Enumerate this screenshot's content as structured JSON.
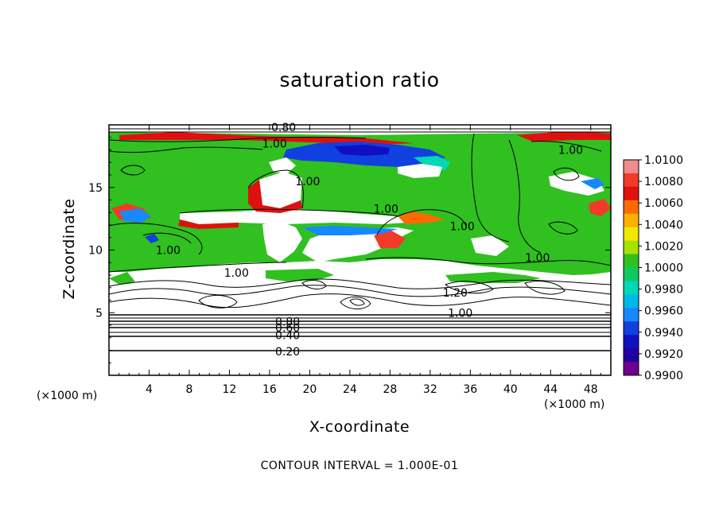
{
  "chart_data": {
    "type": "heatmap",
    "title": "saturation ratio",
    "xlabel": "X-coordinate",
    "ylabel": "Z-coordinate",
    "x_unit": "(×1000 m)",
    "xlim": [
      0,
      50
    ],
    "ylim": [
      0,
      20
    ],
    "x_ticks": [
      4,
      8,
      12,
      16,
      20,
      24,
      28,
      32,
      36,
      40,
      44,
      48
    ],
    "y_ticks": [
      5,
      10,
      15
    ],
    "colorbar": {
      "labels": [
        "1.0100",
        "1.0080",
        "1.0060",
        "1.0040",
        "1.0020",
        "1.0000",
        "0.9980",
        "0.9960",
        "0.9940",
        "0.9920",
        "0.9900"
      ],
      "colors": [
        "#f08c8c",
        "#f23a28",
        "#e01010",
        "#ff6a00",
        "#ffb000",
        "#f0e800",
        "#a8e000",
        "#30c020",
        "#10c860",
        "#00d8b8",
        "#00b8e8",
        "#1888ff",
        "#1040e0",
        "#1010c0",
        "#2000a0",
        "#700090"
      ]
    },
    "contour_labels": [
      {
        "text": "0.20",
        "x": 17.8,
        "z": 1.9
      },
      {
        "text": "0.40",
        "x": 17.8,
        "z": 3.2
      },
      {
        "text": "0.60",
        "x": 17.8,
        "z": 3.8
      },
      {
        "text": "0.80",
        "x": 17.8,
        "z": 4.3
      },
      {
        "text": "1.00",
        "x": 35.0,
        "z": 5.0
      },
      {
        "text": "1.20",
        "x": 34.5,
        "z": 6.6
      },
      {
        "text": "1.00",
        "x": 12.7,
        "z": 8.2
      },
      {
        "text": "1.00",
        "x": 42.7,
        "z": 9.4
      },
      {
        "text": "1.00",
        "x": 35.2,
        "z": 11.9
      },
      {
        "text": "1.00",
        "x": 27.6,
        "z": 13.3
      },
      {
        "text": "1.00",
        "x": 19.8,
        "z": 15.5
      },
      {
        "text": "1.00",
        "x": 5.9,
        "z": 10.0
      },
      {
        "text": "1.00",
        "x": 46.0,
        "z": 18.0
      },
      {
        "text": "1.00",
        "x": 16.5,
        "z": 18.5
      },
      {
        "text": "0.80",
        "x": 17.4,
        "z": 19.8
      }
    ],
    "contour_interval_note": "CONTOUR INTERVAL = 1.000E-01"
  }
}
